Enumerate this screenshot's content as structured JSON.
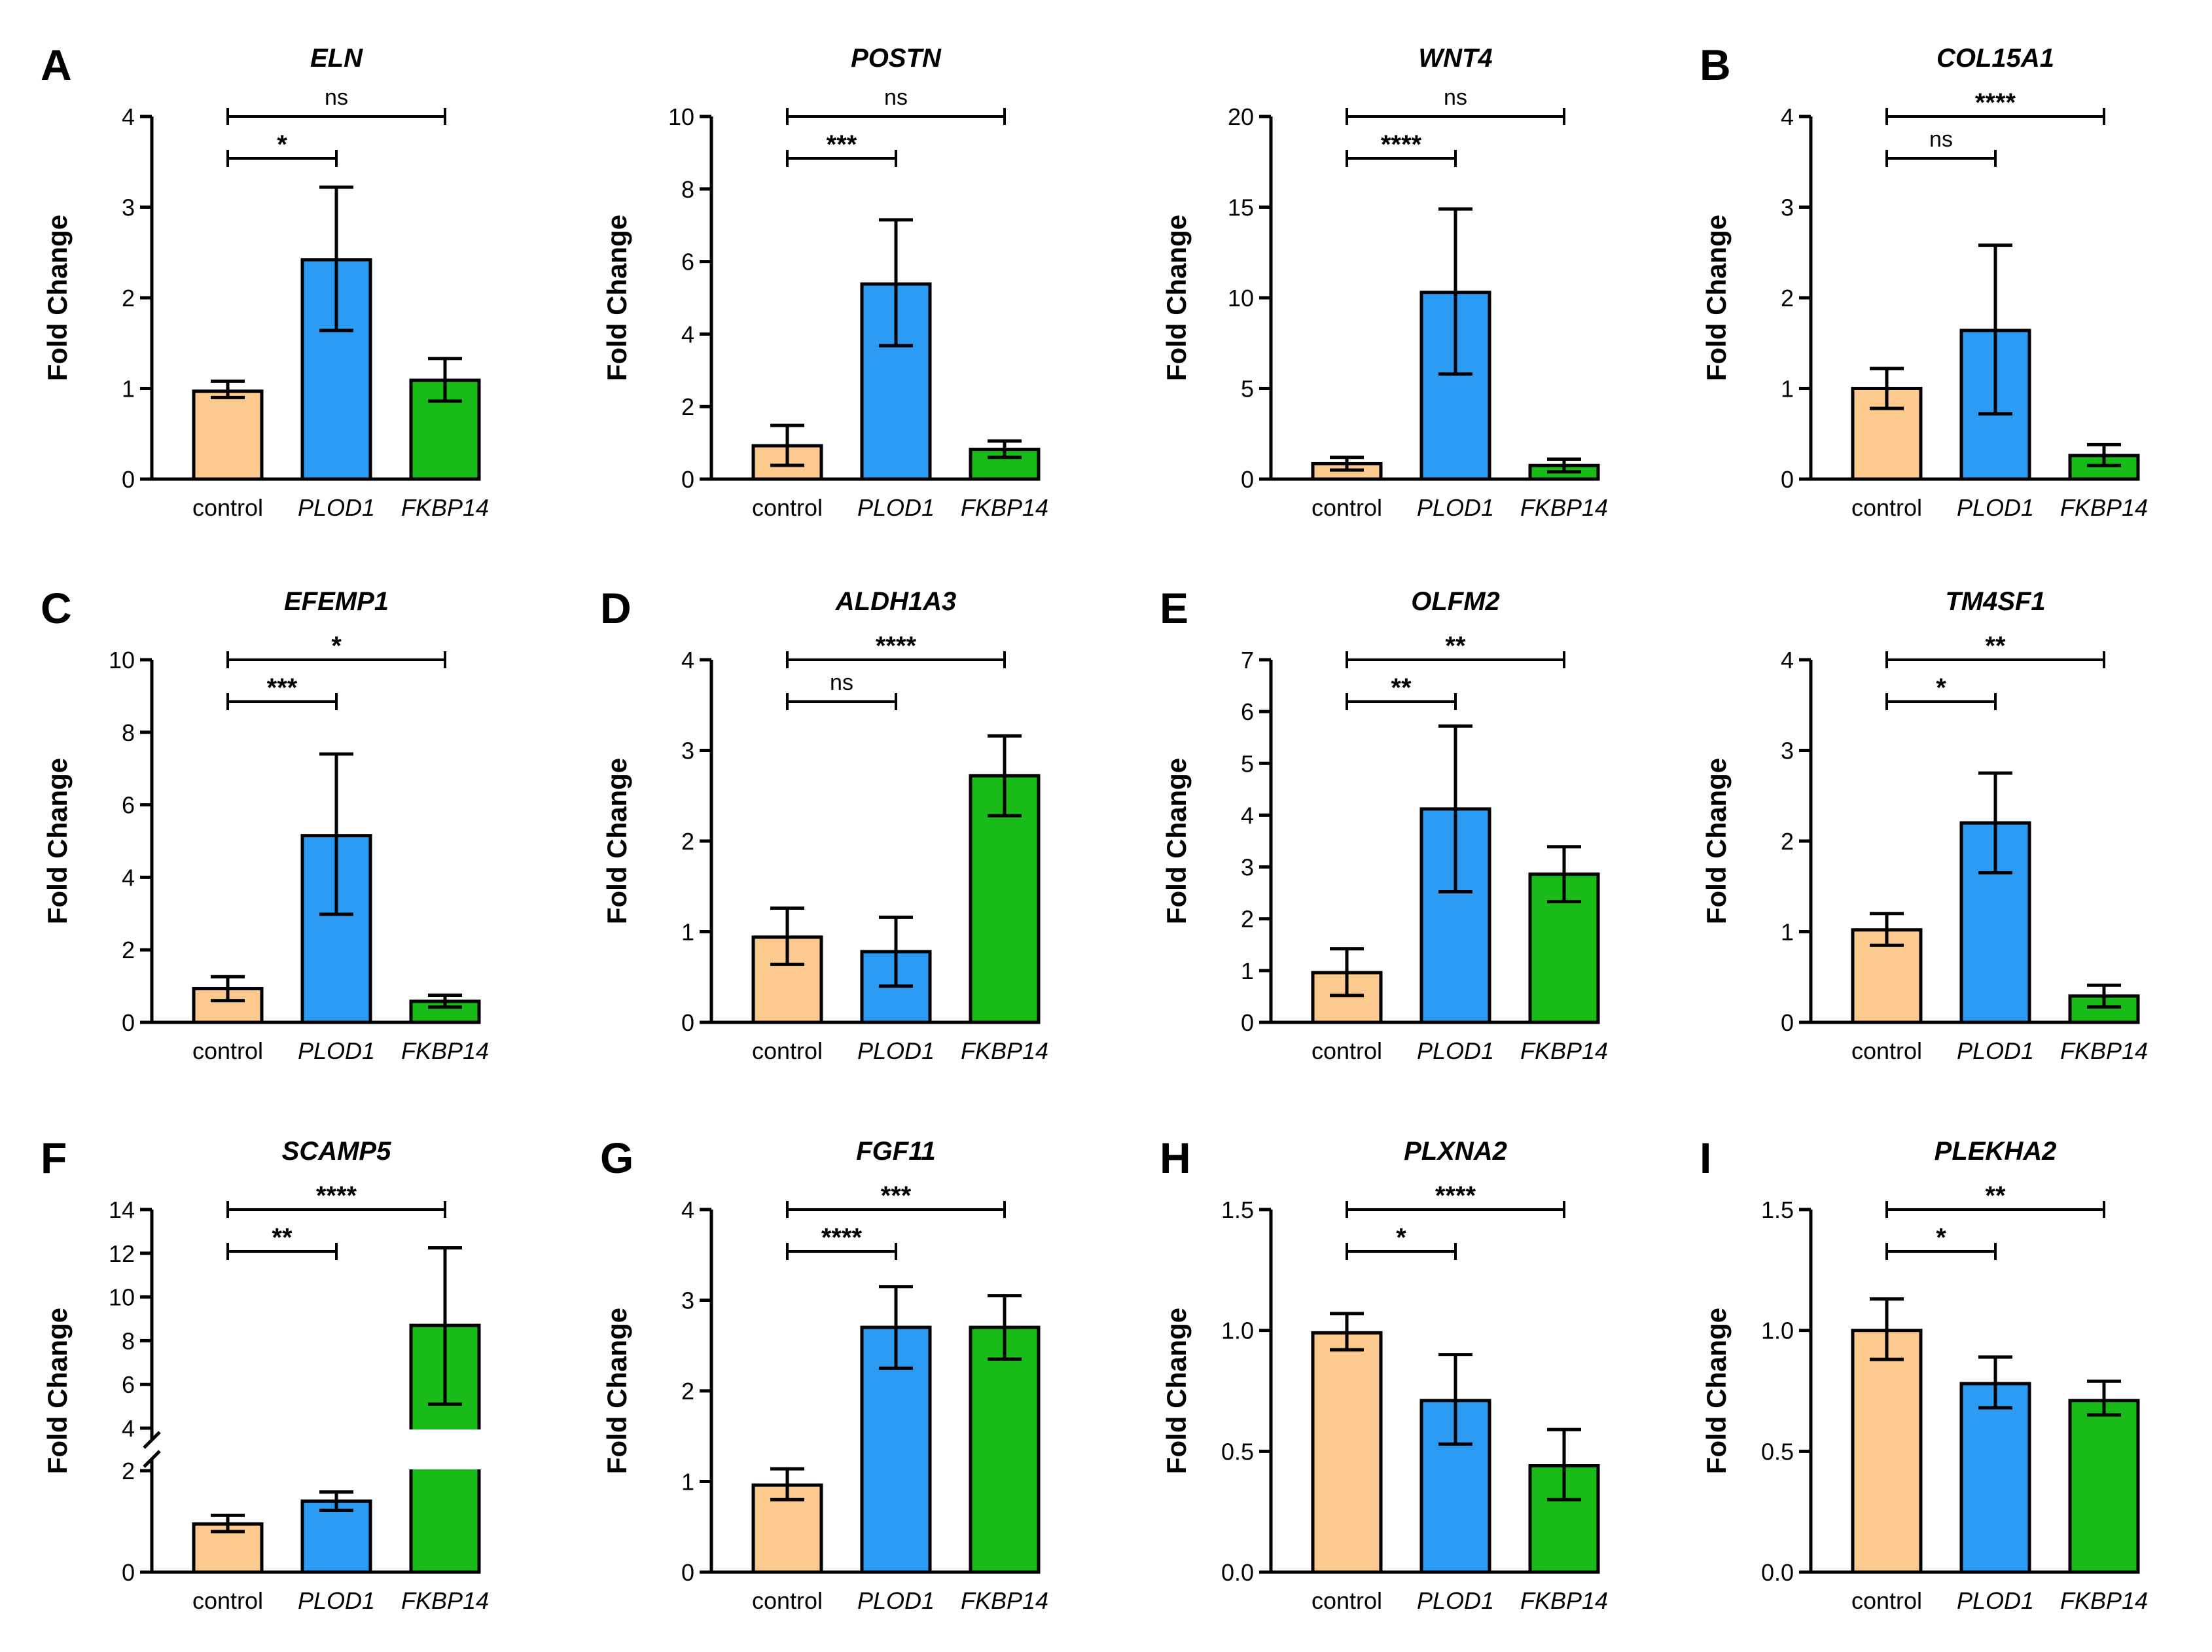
{
  "figure": {
    "y_axis_label": "Fold Change",
    "categories": [
      "control",
      "PLOD1",
      "FKBP14"
    ],
    "colors": {
      "control": "#FCC98E",
      "PLOD1": "#2B9BF4",
      "FKBP14": "#18BB18",
      "outline": "#000000"
    }
  },
  "chart_data": [
    {
      "type": "bar",
      "label": "A",
      "title": "ELN",
      "ylabel": "Fold Change",
      "categories": [
        "control",
        "PLOD1",
        "FKBP14"
      ],
      "values": [
        0.97,
        2.42,
        1.09
      ],
      "errors": [
        [
          0.9,
          1.08
        ],
        [
          1.64,
          3.22
        ],
        [
          0.86,
          1.33
        ]
      ],
      "ylim": [
        0,
        4
      ],
      "yticks": [
        "0",
        "1",
        "2",
        "3",
        "4"
      ],
      "comparisons": [
        {
          "from": 0,
          "to": 1,
          "label": "*"
        },
        {
          "from": 0,
          "to": 2,
          "label": "ns"
        }
      ]
    },
    {
      "type": "bar",
      "label": "",
      "title": "POSTN",
      "ylabel": "Fold Change",
      "categories": [
        "control",
        "PLOD1",
        "FKBP14"
      ],
      "values": [
        0.92,
        5.38,
        0.82
      ],
      "errors": [
        [
          0.38,
          1.48
        ],
        [
          3.68,
          7.15
        ],
        [
          0.6,
          1.05
        ]
      ],
      "ylim": [
        0,
        10
      ],
      "yticks": [
        "0",
        "2",
        "4",
        "6",
        "8",
        "10"
      ],
      "comparisons": [
        {
          "from": 0,
          "to": 1,
          "label": "***"
        },
        {
          "from": 0,
          "to": 2,
          "label": "ns"
        }
      ]
    },
    {
      "type": "bar",
      "label": "",
      "title": "WNT4",
      "ylabel": "Fold Change",
      "categories": [
        "control",
        "PLOD1",
        "FKBP14"
      ],
      "values": [
        0.85,
        10.3,
        0.75
      ],
      "errors": [
        [
          0.5,
          1.2
        ],
        [
          5.8,
          14.9
        ],
        [
          0.4,
          1.1
        ]
      ],
      "ylim": [
        0,
        20
      ],
      "yticks": [
        "0",
        "5",
        "10",
        "15",
        "20"
      ],
      "comparisons": [
        {
          "from": 0,
          "to": 1,
          "label": "****"
        },
        {
          "from": 0,
          "to": 2,
          "label": "ns"
        }
      ]
    },
    {
      "type": "bar",
      "label": "B",
      "title": "COL15A1",
      "ylabel": "Fold Change",
      "categories": [
        "control",
        "PLOD1",
        "FKBP14"
      ],
      "values": [
        1.0,
        1.64,
        0.26
      ],
      "errors": [
        [
          0.78,
          1.22
        ],
        [
          0.72,
          2.58
        ],
        [
          0.15,
          0.38
        ]
      ],
      "ylim": [
        0,
        4
      ],
      "yticks": [
        "0",
        "1",
        "2",
        "3",
        "4"
      ],
      "comparisons": [
        {
          "from": 0,
          "to": 1,
          "label": "ns"
        },
        {
          "from": 0,
          "to": 2,
          "label": "****"
        }
      ]
    },
    {
      "type": "bar",
      "label": "C",
      "title": "EFEMP1",
      "ylabel": "Fold Change",
      "categories": [
        "control",
        "PLOD1",
        "FKBP14"
      ],
      "values": [
        0.93,
        5.15,
        0.58
      ],
      "errors": [
        [
          0.6,
          1.26
        ],
        [
          2.98,
          7.4
        ],
        [
          0.42,
          0.75
        ]
      ],
      "ylim": [
        0,
        10
      ],
      "yticks": [
        "0",
        "2",
        "4",
        "6",
        "8",
        "10"
      ],
      "comparisons": [
        {
          "from": 0,
          "to": 1,
          "label": "***"
        },
        {
          "from": 0,
          "to": 2,
          "label": "*"
        }
      ]
    },
    {
      "type": "bar",
      "label": "D",
      "title": "ALDH1A3",
      "ylabel": "Fold Change",
      "categories": [
        "control",
        "PLOD1",
        "FKBP14"
      ],
      "values": [
        0.94,
        0.78,
        2.72
      ],
      "errors": [
        [
          0.64,
          1.26
        ],
        [
          0.4,
          1.16
        ],
        [
          2.28,
          3.16
        ]
      ],
      "ylim": [
        0,
        4
      ],
      "yticks": [
        "0",
        "1",
        "2",
        "3",
        "4"
      ],
      "comparisons": [
        {
          "from": 0,
          "to": 1,
          "label": "ns"
        },
        {
          "from": 0,
          "to": 2,
          "label": "****"
        }
      ]
    },
    {
      "type": "bar",
      "label": "E",
      "title": "OLFM2",
      "ylabel": "Fold Change",
      "categories": [
        "control",
        "PLOD1",
        "FKBP14"
      ],
      "values": [
        0.96,
        4.12,
        2.86
      ],
      "errors": [
        [
          0.52,
          1.42
        ],
        [
          2.52,
          5.72
        ],
        [
          2.33,
          3.39
        ]
      ],
      "ylim": [
        0,
        7
      ],
      "yticks": [
        "0",
        "1",
        "2",
        "3",
        "4",
        "5",
        "6",
        "7"
      ],
      "comparisons": [
        {
          "from": 0,
          "to": 1,
          "label": "**"
        },
        {
          "from": 0,
          "to": 2,
          "label": "**"
        }
      ]
    },
    {
      "type": "bar",
      "label": "",
      "title": "TM4SF1",
      "ylabel": "Fold Change",
      "categories": [
        "control",
        "PLOD1",
        "FKBP14"
      ],
      "values": [
        1.02,
        2.2,
        0.29
      ],
      "errors": [
        [
          0.85,
          1.2
        ],
        [
          1.65,
          2.75
        ],
        [
          0.17,
          0.41
        ]
      ],
      "ylim": [
        0,
        4
      ],
      "yticks": [
        "0",
        "1",
        "2",
        "3",
        "4"
      ],
      "comparisons": [
        {
          "from": 0,
          "to": 1,
          "label": "*"
        },
        {
          "from": 0,
          "to": 2,
          "label": "**"
        }
      ]
    },
    {
      "type": "bar",
      "label": "F",
      "title": "SCAMP5",
      "ylabel": "Fold Change",
      "categories": [
        "control",
        "PLOD1",
        "FKBP14"
      ],
      "values": [
        0.95,
        1.4,
        8.7
      ],
      "errors": [
        [
          0.8,
          1.12
        ],
        [
          1.22,
          1.58
        ],
        [
          5.1,
          12.25
        ]
      ],
      "axis_break": [
        2,
        4
      ],
      "ylim": [
        0,
        14
      ],
      "yticks": [
        "0",
        "2",
        "4",
        "6",
        "8",
        "10",
        "12",
        "14"
      ],
      "comparisons": [
        {
          "from": 0,
          "to": 1,
          "label": "**"
        },
        {
          "from": 0,
          "to": 2,
          "label": "****"
        }
      ]
    },
    {
      "type": "bar",
      "label": "G",
      "title": "FGF11",
      "ylabel": "Fold Change",
      "categories": [
        "control",
        "PLOD1",
        "FKBP14"
      ],
      "values": [
        0.96,
        2.7,
        2.7
      ],
      "errors": [
        [
          0.8,
          1.14
        ],
        [
          2.25,
          3.15
        ],
        [
          2.35,
          3.05
        ]
      ],
      "ylim": [
        0,
        4
      ],
      "yticks": [
        "0",
        "1",
        "2",
        "3",
        "4"
      ],
      "comparisons": [
        {
          "from": 0,
          "to": 1,
          "label": "****"
        },
        {
          "from": 0,
          "to": 2,
          "label": "***"
        }
      ]
    },
    {
      "type": "bar",
      "label": "H",
      "title": "PLXNA2",
      "ylabel": "Fold Change",
      "categories": [
        "control",
        "PLOD1",
        "FKBP14"
      ],
      "values": [
        0.99,
        0.71,
        0.44
      ],
      "errors": [
        [
          0.92,
          1.07
        ],
        [
          0.53,
          0.9
        ],
        [
          0.3,
          0.59
        ]
      ],
      "ylim": [
        0,
        1.5
      ],
      "yticks": [
        "0.0",
        "0.5",
        "1.0",
        "1.5"
      ],
      "comparisons": [
        {
          "from": 0,
          "to": 1,
          "label": "*"
        },
        {
          "from": 0,
          "to": 2,
          "label": "****"
        }
      ]
    },
    {
      "type": "bar",
      "label": "I",
      "title": "PLEKHA2",
      "ylabel": "Fold Change",
      "categories": [
        "control",
        "PLOD1",
        "FKBP14"
      ],
      "values": [
        1.0,
        0.78,
        0.71
      ],
      "errors": [
        [
          0.88,
          1.13
        ],
        [
          0.68,
          0.89
        ],
        [
          0.65,
          0.79
        ]
      ],
      "ylim": [
        0,
        1.5
      ],
      "yticks": [
        "0.0",
        "0.5",
        "1.0",
        "1.5"
      ],
      "comparisons": [
        {
          "from": 0,
          "to": 1,
          "label": "*"
        },
        {
          "from": 0,
          "to": 2,
          "label": "**"
        }
      ]
    }
  ]
}
